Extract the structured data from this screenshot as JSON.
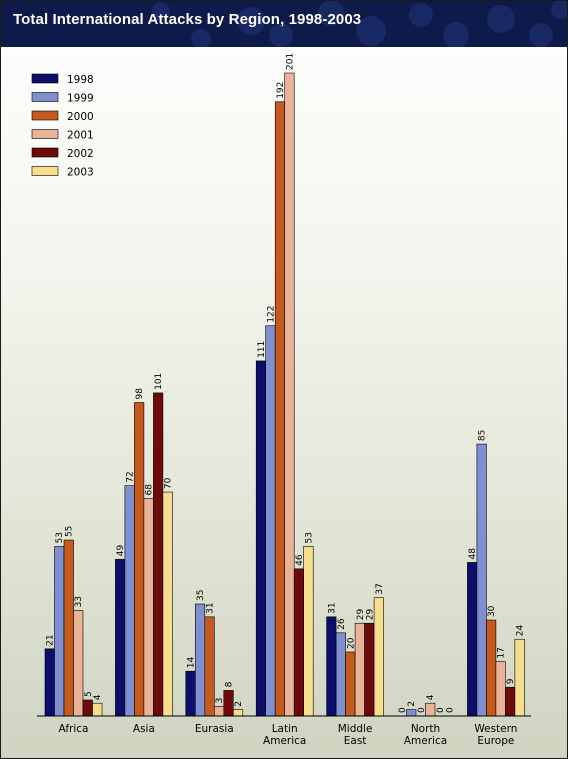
{
  "chart_data": {
    "type": "bar",
    "title": "Total International Attacks by Region, 1998-2003",
    "categories": [
      [
        "Africa"
      ],
      [
        "Asia"
      ],
      [
        "Eurasia"
      ],
      [
        "Latin",
        "America"
      ],
      [
        "Middle",
        "East"
      ],
      [
        "North",
        "America"
      ],
      [
        "Western",
        "Europe"
      ]
    ],
    "series": [
      {
        "name": "1998",
        "color": "#0b0f6b",
        "values": [
          21,
          49,
          14,
          111,
          31,
          0,
          48
        ]
      },
      {
        "name": "1999",
        "color": "#7f8fcf",
        "values": [
          53,
          72,
          35,
          122,
          26,
          2,
          85
        ]
      },
      {
        "name": "2000",
        "color": "#c45a1e",
        "values": [
          55,
          98,
          31,
          192,
          20,
          0,
          30
        ]
      },
      {
        "name": "2001",
        "color": "#e9b398",
        "values": [
          33,
          68,
          3,
          201,
          29,
          4,
          17
        ]
      },
      {
        "name": "2002",
        "color": "#6e0a0a",
        "values": [
          5,
          101,
          8,
          46,
          29,
          0,
          9
        ]
      },
      {
        "name": "2003",
        "color": "#f7de8e",
        "values": [
          4,
          70,
          2,
          53,
          37,
          0,
          24
        ]
      }
    ],
    "ylim": [
      0,
      201
    ],
    "legend_position": "top-left",
    "grid": false
  }
}
